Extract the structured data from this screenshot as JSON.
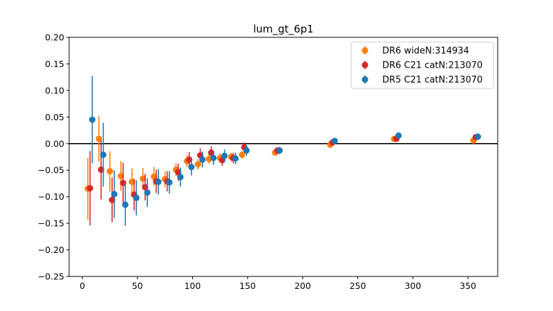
{
  "chart_data": {
    "type": "scatter",
    "title": "lum_gt_6p1",
    "xlabel": "",
    "ylabel": "",
    "xlim": [
      -12,
      377
    ],
    "ylim": [
      -0.25,
      0.2
    ],
    "xticks": [
      0,
      50,
      100,
      150,
      200,
      250,
      300,
      350
    ],
    "yticks": [
      -0.25,
      -0.2,
      -0.15,
      -0.1,
      -0.05,
      0.0,
      0.05,
      0.1,
      0.15,
      0.2
    ],
    "xtick_labels": [
      "0",
      "50",
      "100",
      "150",
      "200",
      "250",
      "300",
      "350"
    ],
    "ytick_labels": [
      "−0.25",
      "−0.20",
      "−0.15",
      "−0.10",
      "−0.05",
      "0.00",
      "0.05",
      "0.10",
      "0.15",
      "0.20"
    ],
    "reference_line_y": 0.0,
    "grid": false,
    "legend_position": "upper right",
    "series": [
      {
        "name": "DR6 wideN:314934",
        "color": "#ff7f0e",
        "points": [
          {
            "x": 5,
            "y": -0.085,
            "err": 0.058
          },
          {
            "x": 15,
            "y": 0.009,
            "err": 0.043
          },
          {
            "x": 25,
            "y": -0.052,
            "err": 0.038
          },
          {
            "x": 35,
            "y": -0.061,
            "err": 0.028
          },
          {
            "x": 45,
            "y": -0.072,
            "err": 0.025
          },
          {
            "x": 55,
            "y": -0.066,
            "err": 0.02
          },
          {
            "x": 65,
            "y": -0.062,
            "err": 0.018
          },
          {
            "x": 75,
            "y": -0.067,
            "err": 0.015
          },
          {
            "x": 85,
            "y": -0.049,
            "err": 0.012
          },
          {
            "x": 95,
            "y": -0.033,
            "err": 0.011
          },
          {
            "x": 105,
            "y": -0.039,
            "err": 0.01
          },
          {
            "x": 115,
            "y": -0.029,
            "err": 0.009
          },
          {
            "x": 125,
            "y": -0.027,
            "err": 0.009
          },
          {
            "x": 135,
            "y": -0.025,
            "err": 0.008
          },
          {
            "x": 145,
            "y": -0.021,
            "err": 0.007
          },
          {
            "x": 175,
            "y": -0.017,
            "err": 0.005
          },
          {
            "x": 225,
            "y": -0.002,
            "err": 0.004
          },
          {
            "x": 283,
            "y": 0.009,
            "err": 0.004
          },
          {
            "x": 355,
            "y": 0.006,
            "err": 0.004
          }
        ]
      },
      {
        "name": "DR6 C21 catN:213070",
        "color": "#d62728",
        "points": [
          {
            "x": 7,
            "y": -0.084,
            "err": 0.07
          },
          {
            "x": 17,
            "y": -0.049,
            "err": 0.056
          },
          {
            "x": 27,
            "y": -0.106,
            "err": 0.042
          },
          {
            "x": 37,
            "y": -0.074,
            "err": 0.038
          },
          {
            "x": 47,
            "y": -0.096,
            "err": 0.03
          },
          {
            "x": 57,
            "y": -0.082,
            "err": 0.025
          },
          {
            "x": 67,
            "y": -0.071,
            "err": 0.022
          },
          {
            "x": 77,
            "y": -0.071,
            "err": 0.019
          },
          {
            "x": 87,
            "y": -0.054,
            "err": 0.016
          },
          {
            "x": 97,
            "y": -0.03,
            "err": 0.014
          },
          {
            "x": 107,
            "y": -0.022,
            "err": 0.013
          },
          {
            "x": 117,
            "y": -0.017,
            "err": 0.012
          },
          {
            "x": 127,
            "y": -0.031,
            "err": 0.011
          },
          {
            "x": 137,
            "y": -0.027,
            "err": 0.01
          },
          {
            "x": 147,
            "y": -0.007,
            "err": 0.009
          },
          {
            "x": 177,
            "y": -0.013,
            "err": 0.006
          },
          {
            "x": 227,
            "y": 0.002,
            "err": 0.005
          },
          {
            "x": 285,
            "y": 0.009,
            "err": 0.005
          },
          {
            "x": 357,
            "y": 0.012,
            "err": 0.005
          }
        ]
      },
      {
        "name": "DR5 C21 catN:213070",
        "color": "#1f77b4",
        "points": [
          {
            "x": 9,
            "y": 0.045,
            "err": 0.082
          },
          {
            "x": 19,
            "y": -0.021,
            "err": 0.06
          },
          {
            "x": 29,
            "y": -0.095,
            "err": 0.045
          },
          {
            "x": 39,
            "y": -0.115,
            "err": 0.04
          },
          {
            "x": 49,
            "y": -0.102,
            "err": 0.033
          },
          {
            "x": 59,
            "y": -0.092,
            "err": 0.027
          },
          {
            "x": 69,
            "y": -0.072,
            "err": 0.024
          },
          {
            "x": 79,
            "y": -0.073,
            "err": 0.021
          },
          {
            "x": 89,
            "y": -0.063,
            "err": 0.018
          },
          {
            "x": 99,
            "y": -0.044,
            "err": 0.016
          },
          {
            "x": 109,
            "y": -0.03,
            "err": 0.015
          },
          {
            "x": 119,
            "y": -0.027,
            "err": 0.013
          },
          {
            "x": 129,
            "y": -0.023,
            "err": 0.012
          },
          {
            "x": 139,
            "y": -0.028,
            "err": 0.011
          },
          {
            "x": 149,
            "y": -0.013,
            "err": 0.01
          },
          {
            "x": 179,
            "y": -0.013,
            "err": 0.007
          },
          {
            "x": 229,
            "y": 0.005,
            "err": 0.006
          },
          {
            "x": 287,
            "y": 0.015,
            "err": 0.006
          },
          {
            "x": 359,
            "y": 0.013,
            "err": 0.006
          }
        ]
      }
    ]
  }
}
